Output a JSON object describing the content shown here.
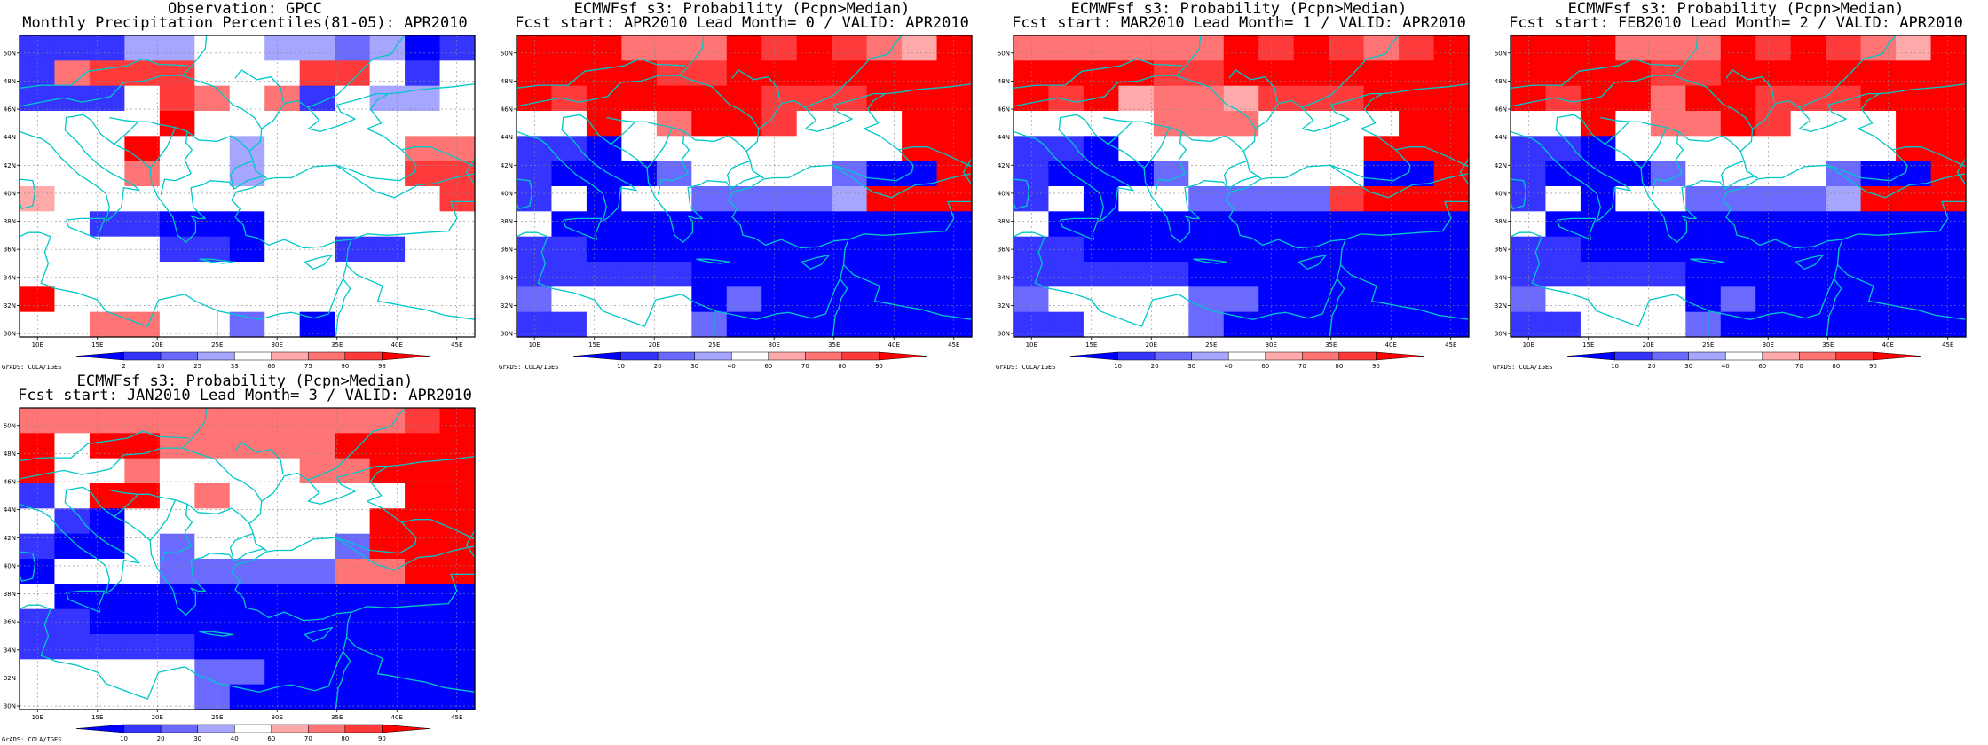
{
  "domain": "Map",
  "palettes": {
    "percentile": [
      "#0000ff",
      "#3535ff",
      "#6a6aff",
      "#a6a6ff",
      "#ffffff",
      "#ffaaaa",
      "#ff7474",
      "#ff3a3a",
      "#ff0000"
    ],
    "probability": [
      "#0000ff",
      "#3535ff",
      "#6a6aff",
      "#a6a6ff",
      "#ffffff",
      "#ffaaaa",
      "#ff7474",
      "#ff3a3a",
      "#ff0000"
    ]
  },
  "coast_color": "#00c8c8",
  "axes": {
    "lon_ticks": [
      "10E",
      "15E",
      "20E",
      "25E",
      "30E",
      "35E",
      "40E",
      "45E"
    ],
    "lat_ticks": [
      "30N",
      "32N",
      "34N",
      "36N",
      "38N",
      "40N",
      "42N",
      "44N",
      "46N",
      "48N",
      "50N"
    ]
  },
  "panels": [
    {
      "id": "obs",
      "title_line1": "Observation: GPCC",
      "title_line2": "Monthly Precipitation Percentiles(81-05): APR2010",
      "legend_type": "percentile",
      "legend_labels": [
        "2",
        "10",
        "25",
        "33",
        "66",
        "75",
        "90",
        "98"
      ],
      "credit": "GrADS: COLA/IGES",
      "grid": [
        "1113344332301",
        "1677744477414",
        "1114764614334",
        "4444844444444",
        "4448443444466",
        "4446443444477",
        "5444444444447",
        "4411000444444",
        "4444110441144",
        "4444444444444",
        "8444444444444",
        "4466442404444"
      ]
    },
    {
      "id": "lm0",
      "title_line1": "ECMWFsf s3: Probability (Pcpn>Median)",
      "title_line2": "Fcst start: APR2010  Lead Month= 0 / VALID: APR2010",
      "legend_type": "probability",
      "legend_labels": [
        "10",
        "20",
        "30",
        "40",
        "60",
        "70",
        "80",
        "90"
      ],
      "credit": "GrADS: COLA/IGES",
      "grid": [
        "8886668787658",
        "8888778888888",
        "8788888777888",
        "4484688744488",
        "1104444444488",
        "1000244442008",
        "1404422223888",
        "4000000000000",
        "1100000000000",
        "1111100000000",
        "2444402000000",
        "1144420000000"
      ]
    },
    {
      "id": "lm1",
      "title_line1": "ECMWFsf s3: Probability (Pcpn>Median)",
      "title_line2": "Fcst start: MAR2010  Lead Month= 1 / VALID: APR2010",
      "legend_type": "probability",
      "legend_labels": [
        "10",
        "20",
        "30",
        "40",
        "60",
        "70",
        "80",
        "90"
      ],
      "credit": "GrADS: COLA/IGES",
      "grid": [
        "6666668787678",
        "8888778888888",
        "8785665777888",
        "4444666444488",
        "1104444444888",
        "1000244444008",
        "1404422227888",
        "4000000000000",
        "1100000000000",
        "1111100000000",
        "2444422000000",
        "1144420000000"
      ]
    },
    {
      "id": "lm2",
      "title_line1": "ECMWFsf s3: Probability (Pcpn>Median)",
      "title_line2": "Fcst start: FEB2010  Lead Month= 2 / VALID: APR2010",
      "legend_type": "probability",
      "legend_labels": [
        "10",
        "20",
        "30",
        "40",
        "60",
        "70",
        "80",
        "90"
      ],
      "credit": "GrADS: COLA/IGES",
      "grid": [
        "8886668787658",
        "8888778888888",
        "8788688777888",
        "4484668744488",
        "1104444444488",
        "1000244442008",
        "1404422223888",
        "4000000000000",
        "1100000000000",
        "1111100000000",
        "2444402000000",
        "1144420000000"
      ]
    },
    {
      "id": "lm3",
      "title_line1": "ECMWFsf s3: Probability (Pcpn>Median)",
      "title_line2": "Fcst start: JAN2010  Lead Month= 3 / VALID: APR2010",
      "legend_type": "probability",
      "legend_labels": [
        "10",
        "20",
        "30",
        "40",
        "60",
        "70",
        "80",
        "90"
      ],
      "credit": "GrADS: COLA/IGES",
      "grid": [
        "6666666666678",
        "8488666668888",
        "8446444466888",
        "1488464444488",
        "4104444444888",
        "1004244442888",
        "0444222226688",
        "4000000000000",
        "1100000000000",
        "1111100000000",
        "4444422000000",
        "4444420000000"
      ]
    }
  ]
}
